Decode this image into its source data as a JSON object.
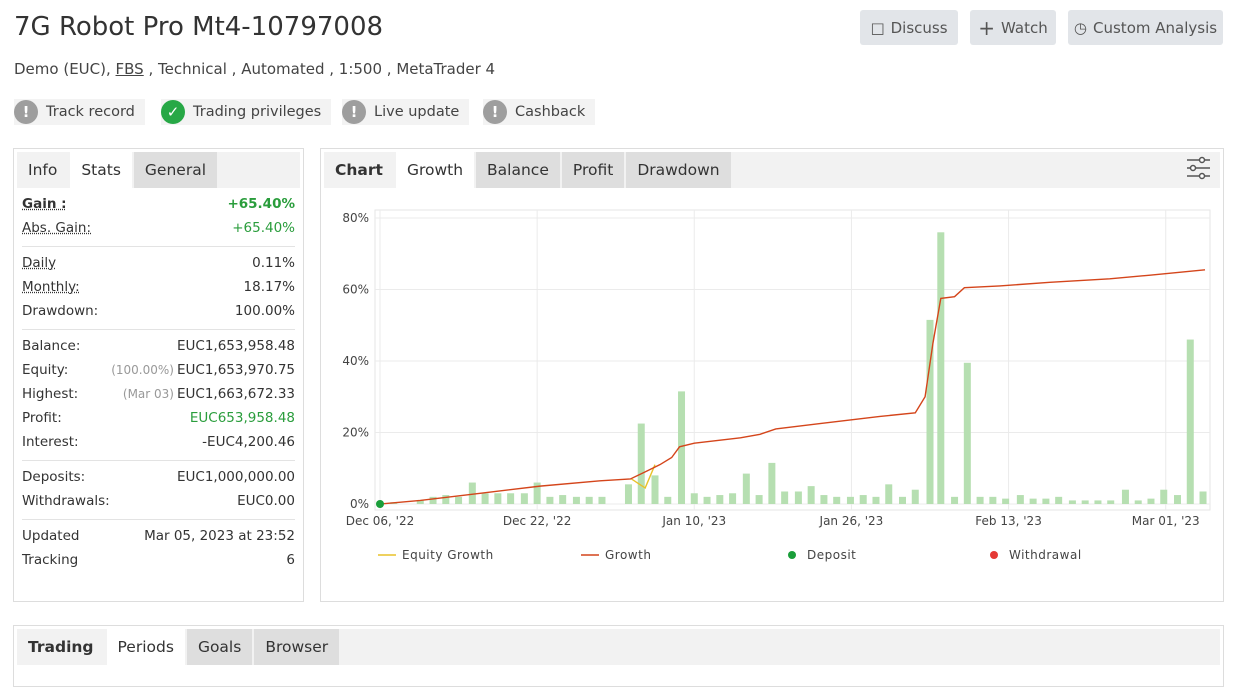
{
  "header": {
    "title": "7G Robot Pro Mt4-10797008",
    "subtitle_before": "Demo (EUC),",
    "broker": "FBS",
    "subtitle_after": ", Technical , Automated , 1:500 , MetaTrader 4"
  },
  "buttons": [
    "Discuss",
    "Watch",
    "Custom Analysis"
  ],
  "badges": [
    {
      "label": "Track record",
      "ok": false
    },
    {
      "label": "Trading privileges",
      "ok": true
    },
    {
      "label": "Live update",
      "ok": false
    },
    {
      "label": "Cashback",
      "ok": false
    }
  ],
  "stats": {
    "tabs": [
      "Info",
      "Stats",
      "General"
    ],
    "groups": [
      {
        "rows": [
          {
            "label": "Gain :",
            "value": "+65.40%",
            "color": "#2a9d3c"
          },
          {
            "label": "Abs. Gain:",
            "value": "+65.40%",
            "color": "#2a9d3c"
          }
        ]
      },
      {
        "rows": [
          {
            "label": "Daily",
            "value": "0.11%"
          },
          {
            "label": "Monthly:",
            "value": "18.17%"
          },
          {
            "label": "Drawdown:",
            "value": "100.00%"
          }
        ]
      },
      {
        "rows": [
          {
            "label": "Balance:",
            "value": "EUC1,653,958.48"
          },
          {
            "label": "Equity:",
            "note": "(100.00%)",
            "value": "EUC1,653,970.75"
          },
          {
            "label": "Highest:",
            "note": "(Mar 03)",
            "value": "EUC1,663,672.33"
          },
          {
            "label": "Profit:",
            "value": "EUC653,958.48",
            "color": "#2a9d3c"
          },
          {
            "label": "Interest:",
            "value": "-EUC4,200.46"
          }
        ]
      },
      {
        "rows": [
          {
            "label": "Deposits:",
            "value": "EUC1,000,000.00"
          },
          {
            "label": "Withdrawals:",
            "value": "EUC0.00"
          }
        ]
      },
      {
        "rows": [
          {
            "label": "Updated",
            "value": "Mar 05, 2023 at 23:52"
          },
          {
            "label": "Tracking",
            "value": "6"
          }
        ]
      }
    ]
  },
  "chart_tabs": [
    "Chart",
    "Growth",
    "Balance",
    "Profit",
    "Drawdown"
  ],
  "bottom_tabs": [
    "Trading",
    "Periods",
    "Goals",
    "Browser"
  ],
  "chart_data": {
    "type": "line",
    "xlim": [
      0,
      84
    ],
    "ylim": [
      0,
      80
    ],
    "xticks": [
      {
        "value": 0,
        "label": "Dec 06, '22"
      },
      {
        "value": 16,
        "label": "Dec 22, '22"
      },
      {
        "value": 32,
        "label": "Jan 10, '23"
      },
      {
        "value": 48,
        "label": "Jan 26, '23"
      },
      {
        "value": 64,
        "label": "Feb 13, '23"
      },
      {
        "value": 80,
        "label": "Mar 01, '23"
      }
    ],
    "yticks": [
      {
        "value": 0,
        "label": "0%"
      },
      {
        "value": 20,
        "label": "20%"
      },
      {
        "value": 40,
        "label": "40%"
      },
      {
        "value": 60,
        "label": "60%"
      },
      {
        "value": 80,
        "label": "80%"
      }
    ],
    "grid": true,
    "bars": {
      "color": "#b6dfb1",
      "x": [
        1.4,
        4.1,
        5.4,
        6.7,
        8.0,
        9.4,
        10.7,
        12.0,
        13.3,
        14.7,
        16.0,
        17.3,
        18.6,
        20.0,
        21.3,
        22.6,
        25.3,
        26.6,
        28.0,
        29.3,
        30.7,
        32.0,
        33.3,
        34.6,
        35.9,
        37.3,
        38.6,
        39.9,
        41.2,
        42.6,
        43.9,
        45.2,
        46.5,
        47.9,
        49.2,
        50.5,
        51.8,
        53.2,
        54.5,
        56.0,
        57.1,
        58.5,
        59.8,
        61.1,
        62.4,
        63.7,
        65.2,
        66.5,
        67.8,
        69.1,
        70.5,
        71.8,
        73.1,
        74.4,
        75.9,
        77.2,
        78.5,
        79.8,
        81.2,
        82.5,
        83.8
      ],
      "values": [
        0.5,
        1,
        2,
        2.5,
        2,
        6,
        3,
        3,
        3,
        3,
        6,
        2,
        2.5,
        2,
        2,
        2,
        5.5,
        22.5,
        8,
        2,
        31.5,
        3,
        2,
        2.5,
        3,
        8.5,
        2.5,
        11.5,
        3.5,
        3.5,
        5,
        2.5,
        2,
        2,
        2.5,
        2,
        5.5,
        2,
        4,
        51.5,
        76,
        2,
        39.5,
        2,
        2,
        1.5,
        2.5,
        1.5,
        1.5,
        2,
        1,
        1,
        1,
        1,
        4,
        1,
        1.5,
        4,
        2.5,
        46,
        3.5
      ]
    },
    "series": [
      {
        "name": "Equity Growth",
        "type": "line",
        "color": "#e8c22a",
        "x": [
          25.6,
          27.0,
          28.0
        ],
        "values": [
          7,
          4.5,
          11
        ]
      },
      {
        "name": "Growth",
        "type": "line",
        "color": "#d4451b",
        "x": [
          0,
          4.1,
          10.2,
          16.3,
          22.4,
          25.5,
          27.0,
          28.5,
          29.7,
          30.5,
          32.0,
          36.7,
          38.7,
          40.3,
          44.8,
          50.9,
          54.5,
          55.5,
          56.3,
          57.1,
          58.5,
          59.5,
          63.1,
          68.2,
          74.3,
          78.4,
          84.0
        ],
        "values": [
          0,
          1,
          3,
          5,
          6.5,
          7,
          9,
          11,
          13,
          16,
          17,
          18.5,
          19.5,
          21,
          22.5,
          24.5,
          25.5,
          30,
          45,
          57.5,
          58,
          60.5,
          61,
          62,
          63,
          64,
          65.5
        ]
      },
      {
        "name": "Deposit",
        "type": "scatter",
        "color": "#1a9e3a",
        "x": [
          0
        ],
        "values": [
          0
        ]
      },
      {
        "name": "Withdrawal",
        "type": "scatter",
        "color": "#e53935",
        "x": [],
        "values": []
      }
    ]
  }
}
